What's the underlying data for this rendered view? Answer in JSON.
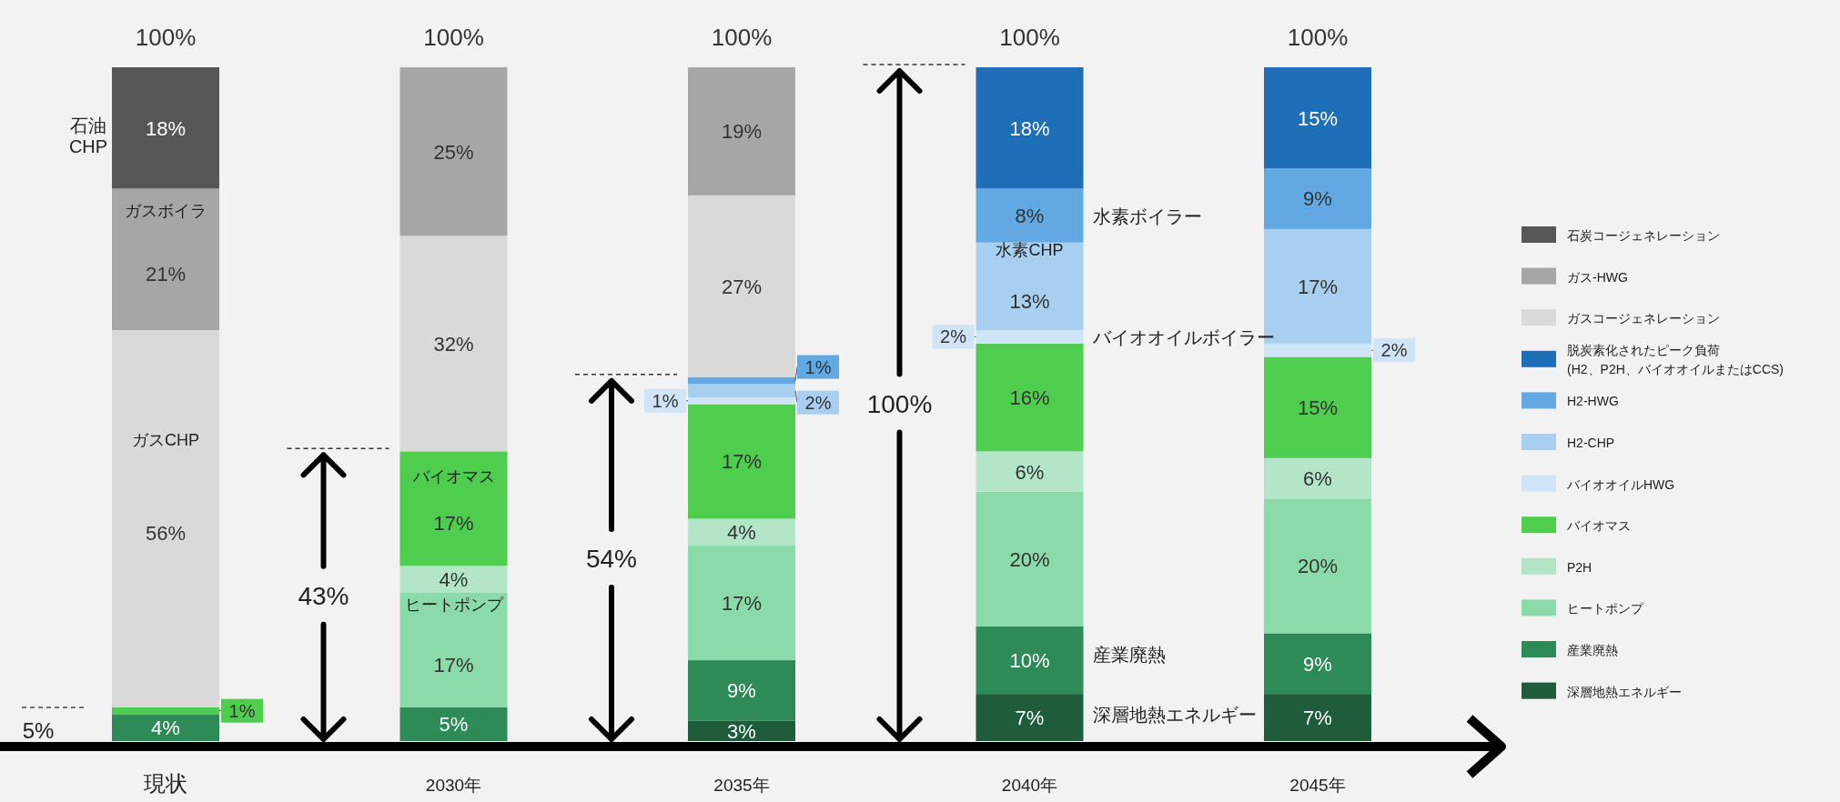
{
  "chart_data": {
    "type": "bar",
    "stacked": true,
    "legend": "right",
    "categories": [
      "現状",
      "2030年",
      "2035年",
      "2040年",
      "2045年"
    ],
    "series": [
      {
        "name": "深層地熱エネルギー",
        "color": "#1f5c3b",
        "values": [
          null,
          null,
          3,
          7,
          7
        ],
        "value_labels": [
          null,
          null,
          "3%",
          "7%",
          "7%"
        ]
      },
      {
        "name": "産業廃熱",
        "color": "#2e8b57",
        "values": [
          4,
          5,
          9,
          10,
          9
        ],
        "value_labels": [
          "4%",
          "5%",
          "9%",
          "10%",
          "9%"
        ]
      },
      {
        "name": "ヒートポンプ",
        "color": "#8adba9",
        "values": [
          null,
          17,
          17,
          20,
          20
        ],
        "value_labels": [
          null,
          "17%",
          "17%",
          "20%",
          "20%"
        ]
      },
      {
        "name": "P2H",
        "color": "#b3e6c9",
        "values": [
          null,
          4,
          4,
          6,
          6
        ],
        "value_labels": [
          null,
          "4%",
          "4%",
          "6%",
          "6%"
        ]
      },
      {
        "name": "バイオマス",
        "color": "#4fcd4f",
        "values": [
          1,
          17,
          17,
          16,
          15
        ],
        "value_labels": [
          "1%",
          "17%",
          "17%",
          "16%",
          "15%"
        ]
      },
      {
        "name": "バイオオイルHWG",
        "color": "#cfe5f7",
        "values": [
          null,
          null,
          1,
          2,
          2
        ],
        "value_labels": [
          null,
          null,
          "1%",
          "2%",
          "2%"
        ]
      },
      {
        "name": "H2-CHP",
        "color": "#a8cfef",
        "values": [
          null,
          null,
          2,
          13,
          17
        ],
        "value_labels": [
          null,
          null,
          "2%",
          "13%",
          "17%"
        ]
      },
      {
        "name": "H2-HWG",
        "color": "#62a8e2",
        "values": [
          null,
          null,
          1,
          8,
          9
        ],
        "value_labels": [
          null,
          null,
          "1%",
          "8%",
          "9%"
        ]
      },
      {
        "name": "脱炭素化されたピーク負荷\n(H2、P2H、バイオオイルまたはCCS)",
        "color": "#1f6fb8",
        "values": [
          null,
          null,
          null,
          18,
          15
        ],
        "value_labels": [
          null,
          null,
          null,
          "18%",
          "15%"
        ]
      },
      {
        "name": "ガスコージェネレーション",
        "color": "#d9d9d9",
        "values": [
          56,
          32,
          27,
          null,
          null
        ],
        "value_labels": [
          "56%",
          "32%",
          "27%",
          null,
          null
        ]
      },
      {
        "name": "ガス-HWG",
        "color": "#a6a6a6",
        "values": [
          21,
          25,
          19,
          null,
          null
        ],
        "value_labels": [
          "21%",
          "25%",
          "19%",
          null,
          null
        ]
      },
      {
        "name": "石炭コージェネレーション",
        "color": "#575757",
        "values": [
          18,
          null,
          null,
          null,
          null
        ],
        "value_labels": [
          "18%",
          null,
          null,
          null,
          null
        ]
      }
    ],
    "totals": [
      "100%",
      "100%",
      "100%",
      "100%",
      "100%"
    ],
    "annotations": [
      "石油\nCHP",
      "ガスボイラ",
      "ガスCHP",
      "5%",
      "43%",
      "バイオマス",
      "ヒートポンプ",
      "54%",
      "100%",
      "水素ボイラー",
      "水素CHP",
      "バイオオイルボイラー",
      "産業廃熱",
      "深層地熱エネルギー"
    ]
  }
}
